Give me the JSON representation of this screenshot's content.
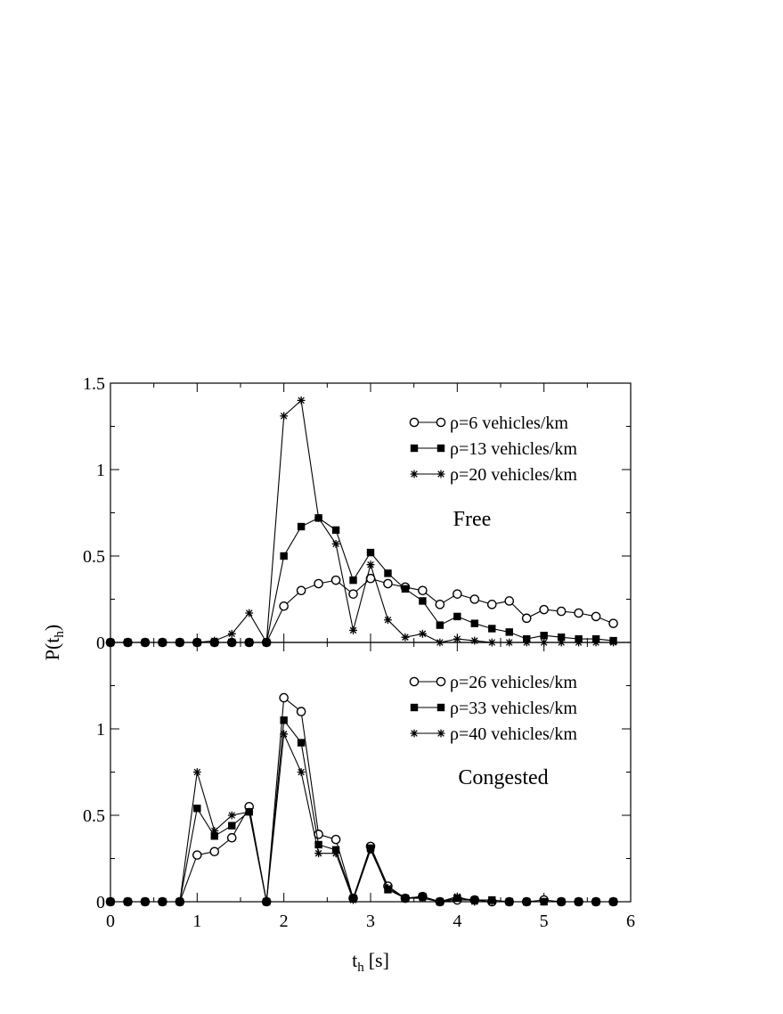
{
  "chart_data": [
    {
      "type": "line",
      "panel": "top",
      "annotation": "Free",
      "xlabel": "t",
      "xlabel_sub": "h",
      "xlabel_unit": "[s]",
      "ylabel": "P(t",
      "ylabel_sub": "h",
      "ylabel_close": ")",
      "xlim": [
        0,
        6
      ],
      "ylim": [
        0,
        1.5
      ],
      "xticks": [
        0,
        1,
        2,
        3,
        4,
        5,
        6
      ],
      "xtick_labels": [
        "0",
        "1",
        "2",
        "3",
        "4",
        "5",
        "6"
      ],
      "yticks": [
        0,
        0.5,
        1,
        1.5
      ],
      "ytick_labels": [
        "0",
        "0.5",
        "1",
        "1.5"
      ],
      "legend_position": "top-right",
      "grid": false,
      "x": [
        0,
        0.2,
        0.4,
        0.6,
        0.8,
        1.0,
        1.2,
        1.4,
        1.6,
        1.8,
        2.0,
        2.2,
        2.4,
        2.6,
        2.8,
        3.0,
        3.2,
        3.4,
        3.6,
        3.8,
        4.0,
        4.2,
        4.4,
        4.6,
        4.8,
        5.0,
        5.2,
        5.4,
        5.6,
        5.8
      ],
      "series": [
        {
          "name": "ρ=6 vehicles/km",
          "marker": "open-circle",
          "values": [
            0,
            0,
            0,
            0,
            0,
            0,
            0,
            0,
            0,
            0,
            0.21,
            0.3,
            0.34,
            0.36,
            0.28,
            0.37,
            0.34,
            0.32,
            0.3,
            0.22,
            0.28,
            0.25,
            0.22,
            0.24,
            0.14,
            0.19,
            0.18,
            0.17,
            0.15,
            0.11
          ]
        },
        {
          "name": "ρ=13 vehicles/km",
          "marker": "filled-square",
          "values": [
            0,
            0,
            0,
            0,
            0,
            0,
            0,
            0,
            0,
            0,
            0.5,
            0.67,
            0.72,
            0.65,
            0.36,
            0.52,
            0.4,
            0.31,
            0.24,
            0.1,
            0.15,
            0.11,
            0.08,
            0.06,
            0.02,
            0.04,
            0.03,
            0.02,
            0.02,
            0.01
          ]
        },
        {
          "name": "ρ=20 vehicles/km",
          "marker": "star",
          "values": [
            0,
            0,
            0,
            0,
            0,
            0,
            0.01,
            0.05,
            0.17,
            0,
            1.31,
            1.4,
            0.72,
            0.57,
            0.07,
            0.45,
            0.13,
            0.03,
            0.05,
            0,
            0.02,
            0.01,
            0,
            0,
            0,
            0,
            0,
            0,
            0,
            0
          ]
        }
      ]
    },
    {
      "type": "line",
      "panel": "bottom",
      "annotation": "Congested",
      "xlim": [
        0,
        6
      ],
      "ylim": [
        0,
        1.5
      ],
      "xticks": [
        0,
        1,
        2,
        3,
        4,
        5,
        6
      ],
      "xtick_labels": [
        "0",
        "1",
        "2",
        "3",
        "4",
        "5",
        "6"
      ],
      "yticks": [
        0,
        0.5,
        1
      ],
      "ytick_labels": [
        "0",
        "0.5",
        "1"
      ],
      "legend_position": "top-right",
      "grid": false,
      "x": [
        0,
        0.2,
        0.4,
        0.6,
        0.8,
        1.0,
        1.2,
        1.4,
        1.6,
        1.8,
        2.0,
        2.2,
        2.4,
        2.6,
        2.8,
        3.0,
        3.2,
        3.4,
        3.6,
        3.8,
        4.0,
        4.2,
        4.4,
        4.6,
        4.8,
        5.0,
        5.2,
        5.4,
        5.6,
        5.8
      ],
      "series": [
        {
          "name": "ρ=26 vehicles/km",
          "marker": "open-circle",
          "values": [
            0,
            0,
            0,
            0,
            0,
            0.27,
            0.29,
            0.37,
            0.55,
            0,
            1.18,
            1.1,
            0.39,
            0.36,
            0.02,
            0.32,
            0.09,
            0.02,
            0.03,
            0,
            0.01,
            0.01,
            0,
            0,
            0,
            0.01,
            0,
            0,
            0,
            0
          ]
        },
        {
          "name": "ρ=33 vehicles/km",
          "marker": "filled-square",
          "values": [
            0,
            0,
            0,
            0,
            0,
            0.54,
            0.38,
            0.44,
            0.52,
            0,
            1.05,
            0.92,
            0.33,
            0.3,
            0.02,
            0.31,
            0.07,
            0.02,
            0.03,
            0,
            0.02,
            0.01,
            0.01,
            0,
            0,
            0,
            0,
            0,
            0,
            0
          ]
        },
        {
          "name": "ρ=40 vehicles/km",
          "marker": "star",
          "values": [
            0,
            0,
            0,
            0,
            0,
            0.75,
            0.41,
            0.5,
            0.52,
            0,
            0.97,
            0.75,
            0.28,
            0.28,
            0.01,
            0.3,
            0.08,
            0.02,
            0.02,
            0,
            0.03,
            0,
            0,
            0,
            0,
            0,
            0,
            0,
            0,
            0
          ]
        }
      ]
    }
  ]
}
